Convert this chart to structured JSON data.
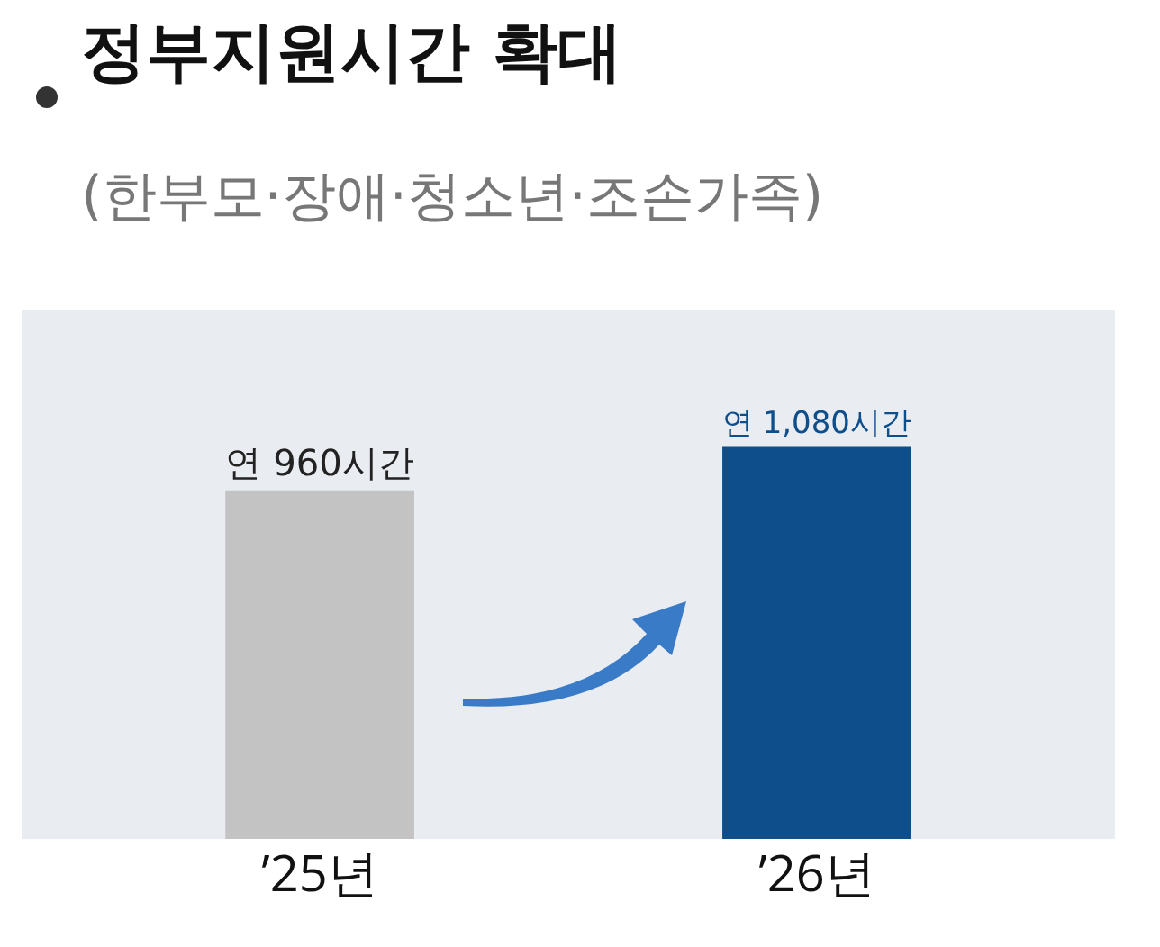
{
  "chart_data": {
    "type": "bar",
    "title": "정부지원시간 확대",
    "subtitle": "(한부모·장애·청소년·조손가족)",
    "categories": [
      "’25년",
      "’26년"
    ],
    "values": [
      960,
      1080
    ],
    "colors": [
      "#c3c3c3",
      "#0e4e8a"
    ],
    "value_labels": [
      "연 960시간",
      "연 1,080시간"
    ],
    "grid": false
  }
}
